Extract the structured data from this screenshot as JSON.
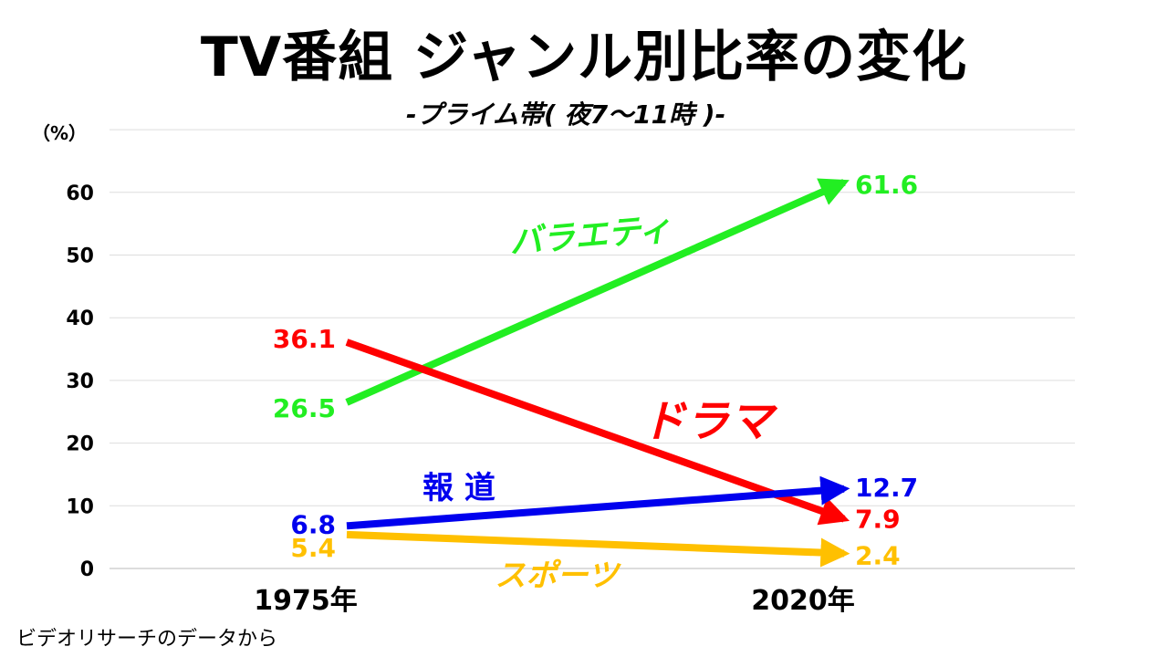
{
  "header": {
    "title": "TV番組 ジャンル別比率の変化",
    "subtitle": "-プライム帯( 夜7～11時 )-"
  },
  "footer": {
    "source": "ビデオリサーチのデータから"
  },
  "chart_data": {
    "type": "line",
    "x": [
      "1975年",
      "2020年"
    ],
    "ylim": [
      0,
      70
    ],
    "yticks": [
      0,
      10,
      20,
      30,
      40,
      50,
      60
    ],
    "ylabel": "（%）",
    "grid": true,
    "series": [
      {
        "name": "バラエティ",
        "values": [
          26.5,
          61.6
        ],
        "labels": [
          "26.5",
          "61.6"
        ],
        "color": "#22ee22"
      },
      {
        "name": "ドラマ",
        "values": [
          36.1,
          7.9
        ],
        "labels": [
          "36.1",
          "7.9"
        ],
        "color": "#ff0000"
      },
      {
        "name": "報 道",
        "values": [
          6.8,
          12.7
        ],
        "labels": [
          "6.8",
          "12.7"
        ],
        "color": "#0000ee"
      },
      {
        "name": "スポーツ",
        "values": [
          5.4,
          2.4
        ],
        "labels": [
          "5.4",
          "2.4"
        ],
        "color": "#ffc000"
      }
    ]
  }
}
